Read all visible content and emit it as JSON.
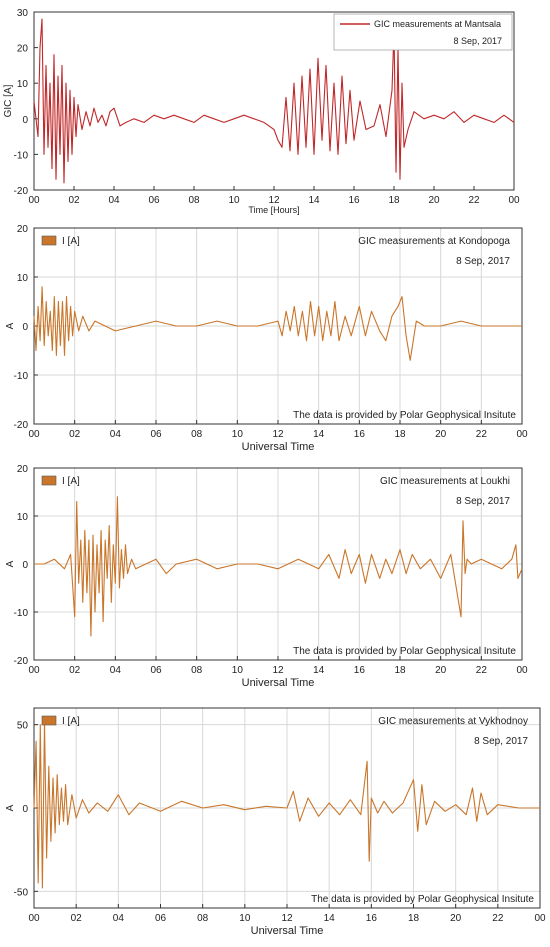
{
  "colors": {
    "red_series": "#c0282a",
    "orange_series": "#c9762a",
    "grid": "#d8d8d8",
    "axis": "#333333"
  },
  "chart_data": [
    {
      "type": "line",
      "title": "GIC measurements at Mantsala",
      "subtitle": "8 Sep, 2017",
      "xlabel": "Time [Hours]",
      "ylabel": "GIC [A]",
      "ylim": [
        -20,
        30
      ],
      "yticks": [
        "30",
        "20",
        "10",
        "0",
        "-10",
        "-20"
      ],
      "xticks": [
        "00",
        "02",
        "04",
        "06",
        "08",
        "10",
        "12",
        "14",
        "16",
        "18",
        "20",
        "22",
        "00"
      ],
      "legend": {
        "position": "top-right",
        "entry": "GIC measurements at Mantsala"
      },
      "grid": false,
      "series": [
        {
          "color": "#c0282a",
          "x": [
            0,
            0.2,
            0.3,
            0.4,
            0.5,
            0.6,
            0.7,
            0.8,
            0.9,
            1,
            1.1,
            1.2,
            1.3,
            1.4,
            1.5,
            1.6,
            1.7,
            1.8,
            1.9,
            2,
            2.1,
            2.2,
            2.4,
            2.6,
            2.8,
            3,
            3.2,
            3.4,
            3.6,
            3.8,
            4,
            4.3,
            4.6,
            5,
            5.5,
            6,
            6.5,
            7,
            7.5,
            8,
            8.5,
            9,
            9.5,
            10,
            10.5,
            11,
            11.5,
            12,
            12.2,
            12.4,
            12.6,
            12.8,
            13,
            13.2,
            13.4,
            13.6,
            13.8,
            14,
            14.2,
            14.4,
            14.6,
            14.8,
            15,
            15.2,
            15.4,
            15.6,
            15.8,
            16,
            16.3,
            16.6,
            17,
            17.3,
            17.6,
            17.9,
            18,
            18.1,
            18.2,
            18.3,
            18.4,
            18.5,
            18.7,
            19,
            19.5,
            20,
            20.5,
            21,
            21.5,
            22,
            22.5,
            23,
            23.5,
            24
          ],
          "y": [
            5,
            -5,
            20,
            28,
            -10,
            15,
            -8,
            10,
            -14,
            18,
            -17,
            12,
            -10,
            15,
            -18,
            10,
            -12,
            8,
            -10,
            6,
            -5,
            4,
            -3,
            2,
            -2,
            3,
            -1,
            1,
            -2,
            2,
            3,
            -2,
            -1,
            0,
            -1,
            1,
            0,
            1,
            0,
            -1,
            1,
            0,
            -1,
            0,
            1,
            0,
            -1,
            -3,
            -6,
            -8,
            6,
            -9,
            10,
            -10,
            12,
            -8,
            14,
            -10,
            17,
            -6,
            15,
            -9,
            10,
            -10,
            12,
            -7,
            8,
            -6,
            5,
            -3,
            -2,
            4,
            -5,
            8,
            25,
            -15,
            20,
            -17,
            10,
            -8,
            -3,
            2,
            0,
            1,
            0,
            2,
            -1,
            1,
            0,
            -1,
            1,
            -1
          ]
        }
      ]
    },
    {
      "type": "line",
      "title": "GIC measurements at Kondopoga",
      "subtitle": "8 Sep, 2017",
      "xlabel": "Universal Time",
      "ylabel": "A",
      "ylim": [
        -20,
        20
      ],
      "yticks": [
        "20",
        "10",
        "0",
        "-10",
        "-20"
      ],
      "xticks": [
        "00",
        "02",
        "04",
        "06",
        "08",
        "10",
        "12",
        "14",
        "16",
        "18",
        "20",
        "22",
        "00"
      ],
      "legend": {
        "position": "top-left",
        "entry": "I [A]"
      },
      "note": "The data is provided by Polar Geophysical Insitute",
      "grid": true,
      "series": [
        {
          "name": "I [A]",
          "color": "#c9762a",
          "x": [
            0,
            0.1,
            0.2,
            0.3,
            0.4,
            0.5,
            0.6,
            0.7,
            0.8,
            0.9,
            1,
            1.1,
            1.2,
            1.3,
            1.4,
            1.5,
            1.6,
            1.7,
            1.8,
            1.9,
            2,
            2.2,
            2.4,
            2.7,
            3,
            3.5,
            4,
            5,
            6,
            7,
            8,
            9,
            10,
            11,
            12,
            12.2,
            12.4,
            12.6,
            12.8,
            13,
            13.2,
            13.4,
            13.6,
            13.8,
            14,
            14.2,
            14.4,
            14.6,
            14.8,
            15,
            15.3,
            15.6,
            16,
            16.3,
            16.6,
            17,
            17.3,
            17.6,
            17.9,
            18.1,
            18.3,
            18.5,
            18.8,
            19.2,
            20,
            21,
            22,
            23,
            24
          ],
          "y": [
            2,
            -5,
            4,
            -3,
            8,
            -4,
            5,
            -2,
            3,
            -5,
            6,
            -6,
            5,
            -4,
            5,
            -6,
            6,
            -3,
            4,
            -2,
            3,
            -1,
            2,
            -1,
            1,
            0,
            -1,
            0,
            1,
            0,
            0,
            1,
            0,
            0,
            1,
            -2,
            3,
            -1,
            4,
            -2,
            3,
            -3,
            5,
            -2,
            4,
            -3,
            3,
            -2,
            5,
            -3,
            2,
            -2,
            4,
            -2,
            3,
            -1,
            -3,
            2,
            4,
            6,
            -2,
            -7,
            1,
            0,
            0,
            1,
            0,
            0,
            0
          ]
        }
      ]
    },
    {
      "type": "line",
      "title": "GIC measurements at Loukhi",
      "subtitle": "8 Sep, 2017",
      "xlabel": "Universal Time",
      "ylabel": "A",
      "ylim": [
        -20,
        20
      ],
      "yticks": [
        "20",
        "10",
        "0",
        "-10",
        "-20"
      ],
      "xticks": [
        "00",
        "02",
        "04",
        "06",
        "08",
        "10",
        "12",
        "14",
        "16",
        "18",
        "20",
        "22",
        "00"
      ],
      "legend": {
        "position": "top-left",
        "entry": "I [A]"
      },
      "note": "The data is provided by Polar Geophysical Insitute",
      "grid": true,
      "series": [
        {
          "name": "I [A]",
          "color": "#c9762a",
          "x": [
            0,
            0.5,
            1,
            1.5,
            1.8,
            2,
            2.1,
            2.2,
            2.3,
            2.4,
            2.5,
            2.6,
            2.7,
            2.8,
            2.9,
            3,
            3.1,
            3.2,
            3.3,
            3.4,
            3.5,
            3.6,
            3.7,
            3.8,
            3.9,
            4,
            4.1,
            4.2,
            4.3,
            4.4,
            4.5,
            4.6,
            4.8,
            5,
            5.5,
            6,
            6.5,
            7,
            8,
            9,
            10,
            11,
            12,
            13,
            14,
            14.5,
            15,
            15.3,
            15.6,
            16,
            16.3,
            16.6,
            17,
            17.3,
            17.6,
            18,
            18.3,
            18.6,
            19,
            19.5,
            20,
            20.5,
            21,
            21.1,
            21.2,
            21.3,
            21.5,
            22,
            22.5,
            23,
            23.5,
            23.7,
            23.8,
            24
          ],
          "y": [
            0,
            0,
            1,
            -1,
            2,
            -11,
            13,
            -4,
            5,
            -8,
            7,
            -6,
            5,
            -15,
            6,
            -10,
            4,
            -6,
            7,
            -12,
            5,
            -3,
            8,
            -8,
            4,
            -4,
            14,
            -5,
            3,
            -3,
            4,
            -2,
            1,
            -1,
            0,
            1,
            -2,
            0,
            1,
            -1,
            0,
            0,
            -1,
            1,
            -1,
            2,
            -3,
            3,
            -2,
            2,
            -4,
            2,
            -3,
            1,
            -2,
            3,
            -2,
            2,
            -1,
            1,
            -3,
            2,
            -11,
            9,
            -2,
            1,
            0,
            1,
            0,
            -1,
            1,
            4,
            -3,
            -1
          ]
        }
      ]
    },
    {
      "type": "line",
      "title": "GIC measurements at Vykhodnoy",
      "subtitle": "8 Sep, 2017",
      "xlabel": "Universal Time",
      "ylabel": "A",
      "ylim": [
        -60,
        60
      ],
      "yticks": [
        "50",
        "0",
        "-50"
      ],
      "xticks": [
        "00",
        "02",
        "04",
        "06",
        "08",
        "10",
        "12",
        "14",
        "16",
        "18",
        "20",
        "22",
        "00"
      ],
      "legend": {
        "position": "top-left",
        "entry": "I [A]"
      },
      "note": "The data is provided by Polar Geophysical Insitute",
      "grid": true,
      "series": [
        {
          "name": "I [A]",
          "color": "#c9762a",
          "x": [
            0,
            0.1,
            0.2,
            0.3,
            0.4,
            0.5,
            0.6,
            0.7,
            0.8,
            0.9,
            1,
            1.1,
            1.2,
            1.3,
            1.4,
            1.5,
            1.6,
            1.8,
            2,
            2.3,
            2.6,
            3,
            3.5,
            4,
            4.5,
            5,
            6,
            7,
            8,
            9,
            10,
            11,
            12,
            12.3,
            12.6,
            13,
            13.5,
            14,
            14.5,
            15,
            15.5,
            15.8,
            15.9,
            16,
            16.3,
            16.6,
            17,
            17.5,
            18,
            18.2,
            18.4,
            18.6,
            19,
            19.5,
            20,
            20.5,
            20.8,
            21,
            21.2,
            21.5,
            22,
            23,
            24
          ],
          "y": [
            0,
            40,
            -45,
            50,
            -48,
            52,
            -30,
            25,
            -20,
            18,
            -15,
            20,
            -10,
            12,
            -8,
            14,
            -10,
            8,
            -6,
            5,
            -3,
            3,
            -2,
            8,
            -4,
            3,
            -2,
            4,
            0,
            2,
            -1,
            1,
            0,
            10,
            -8,
            6,
            -5,
            3,
            -4,
            5,
            -4,
            28,
            -32,
            6,
            -3,
            4,
            -3,
            3,
            17,
            -14,
            14,
            -10,
            4,
            -2,
            2,
            -4,
            12,
            -8,
            9,
            -4,
            2,
            0,
            0
          ]
        }
      ]
    }
  ]
}
